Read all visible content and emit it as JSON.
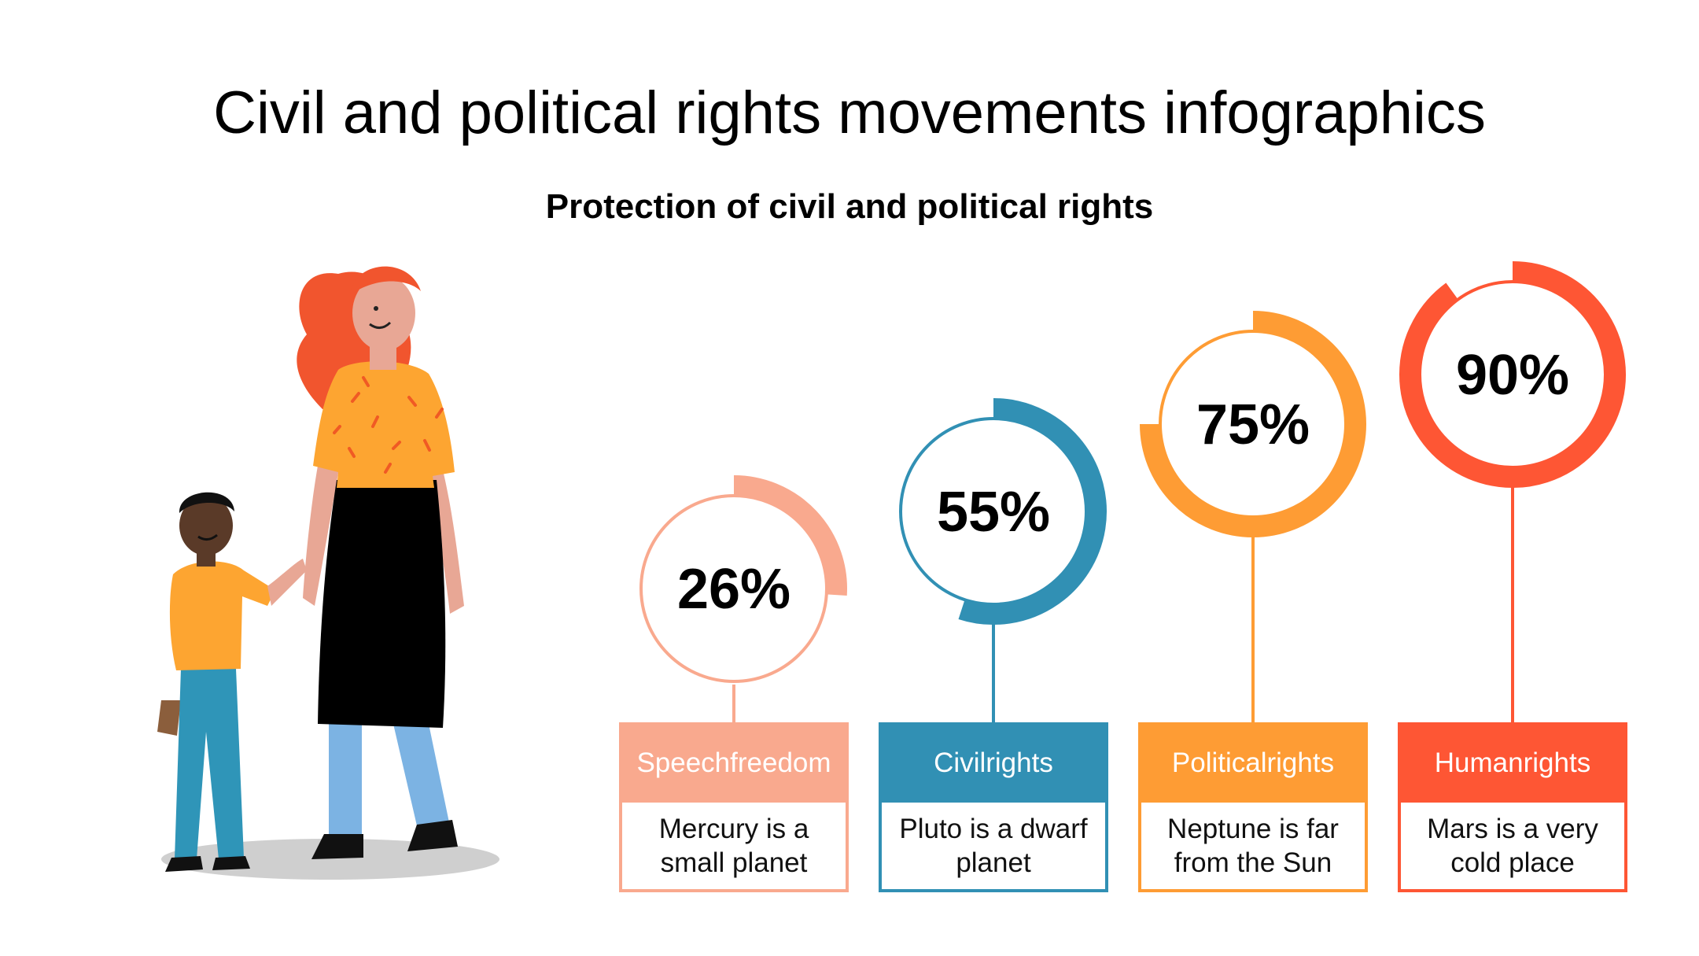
{
  "title": "Civil and political rights movements infographics",
  "subtitle": "Protection of civil and political rights",
  "chart_data": {
    "type": "donut-progress",
    "unit": "%",
    "items": [
      {
        "value": 26,
        "display": "26%",
        "label_line1": "Speech",
        "label_line2": "freedom",
        "description": "Mercury is a small planet",
        "color": "#F9A98E"
      },
      {
        "value": 55,
        "display": "55%",
        "label_line1": "Civil",
        "label_line2": "rights",
        "description": "Pluto is a dwarf planet",
        "color": "#3190B4"
      },
      {
        "value": 75,
        "display": "75%",
        "label_line1": "Political",
        "label_line2": "rights",
        "description": "Neptune is far from the Sun",
        "color": "#FE9C34"
      },
      {
        "value": 90,
        "display": "90%",
        "label_line1": "Human",
        "label_line2": "rights",
        "description": "Mars is a very cold place",
        "color": "#FE5634"
      }
    ]
  }
}
